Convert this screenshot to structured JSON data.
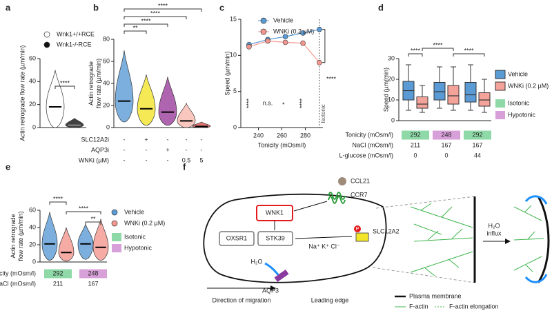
{
  "chart_data": [
    {
      "type": "violin",
      "panel": "a",
      "ylabel": [
        "Actin retrograde flow rate (µm/min)"
      ],
      "ylim": [
        0,
        60
      ],
      "yticks": [
        0,
        20,
        40,
        60
      ],
      "groups": [
        {
          "name": "Wnk1+/+RCE",
          "color": "#ffffff",
          "median": 18,
          "min": 0,
          "max": 50
        },
        {
          "name": "Wnk1-/-RCE",
          "color": "#111111",
          "median": 2,
          "min": 0,
          "max": 8
        }
      ],
      "significance": [
        "****"
      ]
    },
    {
      "type": "violin",
      "panel": "b",
      "ylabel": [
        "Actin retrograde",
        "flow rate (µm/min)"
      ],
      "ylim": [
        0,
        80
      ],
      "yticks": [
        0,
        20,
        40,
        60,
        80
      ],
      "groups": [
        {
          "color": "#5b9bd5",
          "median": 24,
          "min": 5,
          "max": 70
        },
        {
          "color": "#f2e52a",
          "median": 17,
          "min": 2,
          "max": 48
        },
        {
          "color": "#9b3d9b",
          "median": 14,
          "min": 2,
          "max": 46
        },
        {
          "color": "#f7b9ac",
          "median": 6,
          "min": 0,
          "max": 22
        },
        {
          "color": "#d9534f",
          "median": 1,
          "min": 0,
          "max": 5
        }
      ],
      "significance": [
        "**",
        "****",
        "****",
        "****"
      ],
      "table": {
        "rows": [
          {
            "label": "SLC12A2i",
            "values": [
              "-",
              "+",
              "-",
              "-",
              "-"
            ]
          },
          {
            "label": "AQP3i",
            "values": [
              "-",
              "-",
              "+",
              "-",
              "-"
            ]
          },
          {
            "label": "WNKi (µM)",
            "values": [
              "-",
              "-",
              "-",
              "0.5",
              "5"
            ]
          }
        ]
      }
    },
    {
      "type": "line",
      "panel": "c",
      "ylabel": [
        "Speed (µm/min)"
      ],
      "xlabel": "Tonicity (mOsm/l)",
      "xlim": [
        225,
        295
      ],
      "xticks": [
        240,
        260,
        280
      ],
      "ylim": [
        0,
        15
      ],
      "yticks": [
        0,
        5,
        10,
        15
      ],
      "series": [
        {
          "name": "Vehicle",
          "color": "#5b9bd5",
          "x": [
            232,
            248,
            263,
            278,
            292
          ],
          "values": [
            11.5,
            12.2,
            12.6,
            13.1,
            13.6
          ]
        },
        {
          "name": "WNKi (0.2 µM)",
          "color": "#f4978e",
          "x": [
            232,
            248,
            263,
            278,
            292
          ],
          "values": [
            11.2,
            12.0,
            11.8,
            11.7,
            9
          ]
        }
      ],
      "isotonic": {
        "label": "Isotonic",
        "x": 292
      },
      "significance": [
        "****",
        "n.s.",
        "*",
        "****",
        "****"
      ]
    },
    {
      "type": "box",
      "panel": "d",
      "ylabel": [
        "Speed (µm/min)"
      ],
      "ylim": [
        0,
        30
      ],
      "yticks": [
        0,
        10,
        20,
        30
      ],
      "groups": [
        {
          "color": "#5b9bd5",
          "min": 5,
          "q1": 10,
          "median": 14.5,
          "q3": 19,
          "max": 27
        },
        {
          "color": "#f4a39a",
          "min": 4,
          "q1": 6,
          "median": 8,
          "q3": 11.5,
          "max": 17
        },
        {
          "color": "#5b9bd5",
          "min": 6,
          "q1": 10,
          "median": 14,
          "q3": 18.5,
          "max": 26
        },
        {
          "color": "#f4a39a",
          "min": 5,
          "q1": 8,
          "median": 12,
          "q3": 17,
          "max": 26
        },
        {
          "color": "#5b9bd5",
          "min": 5,
          "q1": 9,
          "median": 12.5,
          "q3": 18.5,
          "max": 27
        },
        {
          "color": "#f4a39a",
          "min": 4,
          "q1": 7,
          "median": 10,
          "q3": 13.5,
          "max": 20
        }
      ],
      "legend": [
        {
          "name": "Vehicle",
          "color": "#5b9bd5"
        },
        {
          "name": "WNKi (0.2 µM)",
          "color": "#f4a39a"
        },
        {
          "name": "Isotonic",
          "color": "#8fd9a8"
        },
        {
          "name": "Hypotonic",
          "color": "#d8a0d8"
        }
      ],
      "significance": [
        "****",
        "****",
        "****"
      ],
      "table": {
        "rows": [
          {
            "label": "Tonicity (mOsm/l)",
            "values": [
              292,
              248,
              292
            ],
            "colors": [
              "#8fd9a8",
              "#d8a0d8",
              "#8fd9a8"
            ]
          },
          {
            "label": "NaCl (mOsm/l)",
            "values": [
              211,
              167,
              167
            ]
          },
          {
            "label": "L-glucose (mOsm/l)",
            "values": [
              0,
              0,
              44
            ]
          }
        ]
      }
    },
    {
      "type": "violin",
      "panel": "e",
      "ylabel": [
        "Actin retrograde",
        "flow rate (µm/min)"
      ],
      "ylim": [
        0,
        60
      ],
      "yticks": [
        0,
        20,
        40,
        60
      ],
      "groups": [
        {
          "color": "#5b9bd5",
          "median": 21,
          "min": 2,
          "max": 58
        },
        {
          "color": "#f4978e",
          "median": 11,
          "min": 1,
          "max": 40
        },
        {
          "color": "#5b9bd5",
          "median": 21,
          "min": 3,
          "max": 44
        },
        {
          "color": "#f4978e",
          "median": 17,
          "min": 2,
          "max": 50
        }
      ],
      "legend": [
        {
          "name": "Vehicle",
          "color": "#5b9bd5"
        },
        {
          "name": "WNKi (0.2 µM)",
          "color": "#f4978e"
        },
        {
          "name": "Isotonic",
          "color": "#8fd9a8"
        },
        {
          "name": "Hypotonic",
          "color": "#d8a0d8"
        }
      ],
      "significance": [
        "****",
        "****",
        "**"
      ],
      "table": {
        "rows": [
          {
            "label": "Tonicity (mOsm/l)",
            "values": [
              292,
              248
            ],
            "colors": [
              "#8fd9a8",
              "#d8a0d8"
            ]
          },
          {
            "label": "NaCl (mOsm/l)",
            "values": [
              211,
              167
            ]
          }
        ]
      }
    }
  ],
  "diagram": {
    "panel": "f",
    "ligand": "CCL21",
    "receptor": "CCR7",
    "kinase": "WNK1",
    "substrates": [
      "OXSR1",
      "STK39"
    ],
    "transporter": "SLC12A2",
    "phospho": "P",
    "ions": "Na⁺ K⁺ Cl⁻",
    "water": "H₂O",
    "channel": "AQP3",
    "direction": "Direction of migration",
    "leading_edge": "Leading edge",
    "influx": [
      "H₂O",
      "influx"
    ],
    "legend": [
      "Plasma membrane",
      "F-actin",
      "F-actin elongation"
    ]
  }
}
